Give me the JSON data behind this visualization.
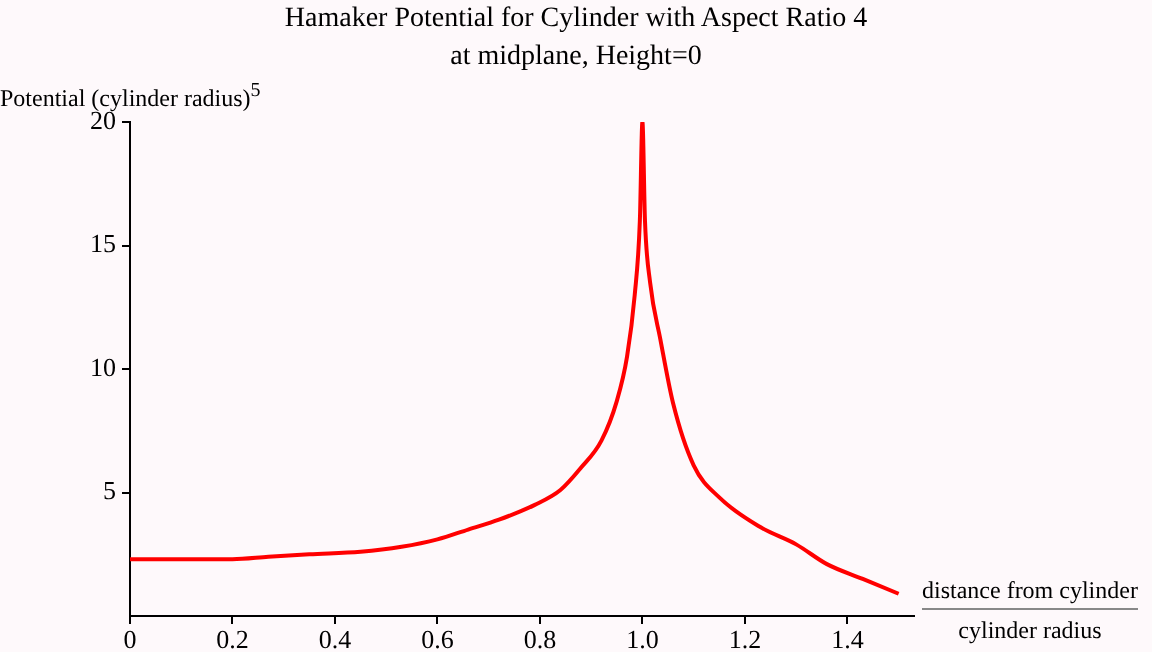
{
  "chart_data": {
    "type": "line",
    "title": "Hamaker Potential for Cylinder with Aspect Ratio 4",
    "subtitle": "at midplane, Height=0",
    "xlabel": "distance from cylinder",
    "ylabel": "Potential (cylinder radius)$^{5}$",
    "annotations": [
      "cylinder radius"
    ],
    "series": [
      {
        "color": "#ff0000",
        "x": [
          0,
          0.1,
          0.2,
          0.27,
          0.35,
          0.45,
          0.53,
          0.6,
          0.66,
          0.72,
          0.79,
          0.84,
          0.88,
          0.92,
          0.95,
          0.97,
          0.985,
          0.995,
          1.0,
          1.005,
          1.015,
          1.035,
          1.06,
          1.1,
          1.15,
          1.23,
          1.3,
          1.36,
          1.43,
          1.5
        ],
        "values": [
          2.3,
          2.3,
          2.3,
          2.4,
          2.5,
          2.6,
          2.8,
          3.1,
          3.5,
          3.9,
          4.5,
          5.1,
          6.0,
          7.1,
          8.7,
          10.5,
          13.0,
          16.0,
          20.0,
          16.0,
          13.5,
          11.2,
          8.6,
          6.1,
          4.8,
          3.6,
          2.9,
          2.1,
          1.5,
          0.9
        ]
      }
    ],
    "xlim": [
      0,
      1.53
    ],
    "xticks": [
      0,
      {
        "value": 0.2,
        "label": "0.2"
      },
      {
        "value": 0.4,
        "label": "0.4"
      },
      {
        "value": 0.6,
        "label": "0.6"
      },
      {
        "value": 0.8,
        "label": "0.8"
      },
      {
        "value": 1,
        "label": "1.0"
      },
      {
        "value": 1.2,
        "label": "1.2"
      },
      {
        "value": 1.4,
        "label": "1.4"
      }
    ],
    "ylim": [
      0,
      20
    ],
    "yticks": [
      5,
      10,
      15,
      20
    ],
    "grid": false,
    "legend": false,
    "marker": "none",
    "line_style": "solid"
  }
}
